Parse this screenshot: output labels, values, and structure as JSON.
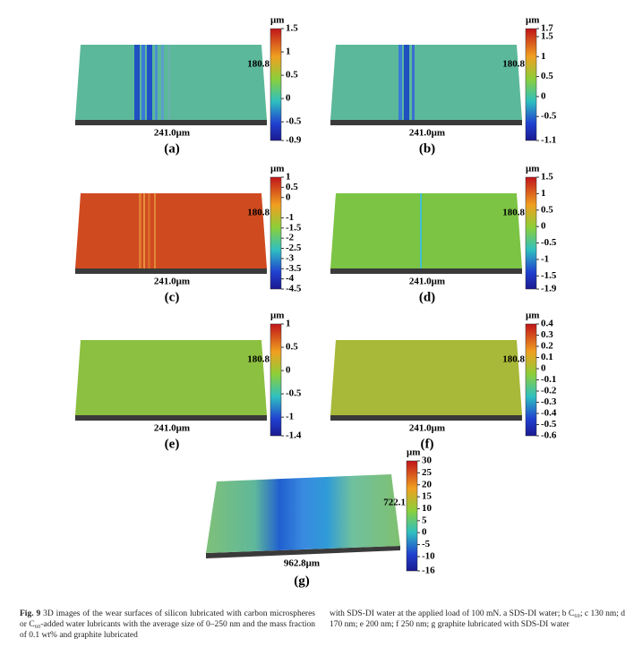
{
  "panels": [
    {
      "letter": "(a)",
      "width_label": "241.0μm",
      "depth_label": "180.8",
      "unit": "μm",
      "ticks": [
        1.5,
        1,
        0.5,
        0,
        -0.5,
        -0.9
      ]
    },
    {
      "letter": "(b)",
      "width_label": "241.0μm",
      "depth_label": "180.8",
      "unit": "μm",
      "ticks": [
        1.7,
        1.5,
        1,
        0.5,
        0,
        -0.5,
        -1.1
      ]
    },
    {
      "letter": "(c)",
      "width_label": "241.0μm",
      "depth_label": "180.8",
      "unit": "μm",
      "ticks": [
        1,
        0.5,
        0,
        -1,
        -1.5,
        -2,
        -2.5,
        -3,
        -3.5,
        -4,
        -4.5
      ]
    },
    {
      "letter": "(d)",
      "width_label": "241.0μm",
      "depth_label": "180.8",
      "unit": "μm",
      "ticks": [
        1.5,
        1,
        0.5,
        0,
        -0.5,
        -1,
        -1.5,
        -1.9
      ]
    },
    {
      "letter": "(e)",
      "width_label": "241.0μm",
      "depth_label": "180.8",
      "unit": "μm",
      "ticks": [
        1,
        0.5,
        0,
        -0.5,
        -1,
        -1.4
      ]
    },
    {
      "letter": "(f)",
      "width_label": "241.0μm",
      "depth_label": "180.8",
      "unit": "μm",
      "ticks": [
        0.4,
        0.3,
        0.2,
        0.1,
        0,
        -0.1,
        -0.2,
        -0.3,
        -0.4,
        -0.5,
        -0.6
      ]
    },
    {
      "letter": "(g)",
      "width_label": "962.8μm",
      "depth_label": "722.1",
      "unit": "μm",
      "ticks": [
        30,
        25,
        20,
        15,
        10,
        5,
        0,
        -5,
        -10,
        -16
      ]
    }
  ],
  "caption": {
    "label": "Fig. 9",
    "left": "3D images of the wear surfaces of silicon lubricated with carbon microspheres or C₆₀-added water lubricants with the average size of 0–250 nm and the mass fraction of 0.1 wt% and graphite lubricated",
    "right": "with SDS-DI water at the applied load of 100 mN. a SDS-DI water; b C₆₀; c 130 nm; d 170 nm; e 200 nm; f 250 nm; g graphite lubricated with SDS-DI water"
  }
}
